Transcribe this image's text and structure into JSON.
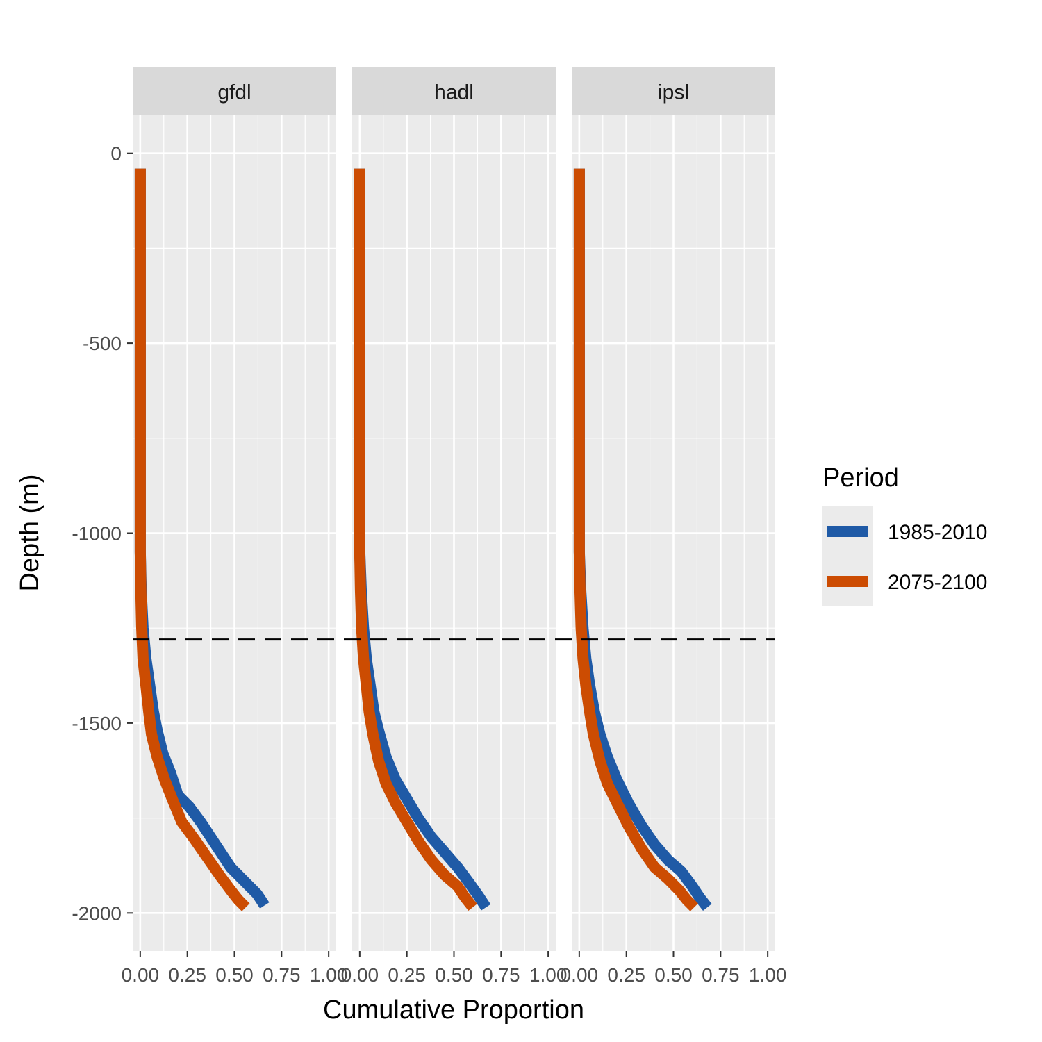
{
  "chart_data": {
    "type": "line",
    "xlabel": "Cumulative Proportion",
    "ylabel": "Depth (m)",
    "xlim": [
      -0.04,
      1.04
    ],
    "ylim": [
      -2100,
      100
    ],
    "x_ticks": [
      0.0,
      0.25,
      0.5,
      0.75,
      1.0
    ],
    "x_tick_labels": [
      "0.00",
      "0.25",
      "0.50",
      "0.75",
      "1.00"
    ],
    "y_ticks": [
      0,
      -500,
      -1000,
      -1500,
      -2000
    ],
    "y_tick_labels": [
      "0",
      "-500",
      "-1000",
      "-1500",
      "-2000"
    ],
    "grid": true,
    "reference_line": {
      "y": -1280,
      "style": "dashed",
      "color": "#000000"
    },
    "legend": {
      "title": "Period",
      "placement": "right",
      "entries": [
        {
          "label": "1985-2010",
          "color": "#1f5aa6"
        },
        {
          "label": "2075-2100",
          "color": "#cc4c02"
        }
      ]
    },
    "panels": [
      {
        "label": "gfdl",
        "series": [
          {
            "name": "1985-2010",
            "color": "#1f5aa6",
            "points": [
              [
                0.0,
                -40
              ],
              [
                0.0,
                -300
              ],
              [
                0.0,
                -600
              ],
              [
                0.0,
                -900
              ],
              [
                0.0,
                -1050
              ],
              [
                0.005,
                -1150
              ],
              [
                0.015,
                -1250
              ],
              [
                0.03,
                -1330
              ],
              [
                0.05,
                -1400
              ],
              [
                0.07,
                -1470
              ],
              [
                0.09,
                -1520
              ],
              [
                0.12,
                -1580
              ],
              [
                0.16,
                -1630
              ],
              [
                0.2,
                -1690
              ],
              [
                0.26,
                -1720
              ],
              [
                0.32,
                -1760
              ],
              [
                0.4,
                -1820
              ],
              [
                0.48,
                -1880
              ],
              [
                0.56,
                -1920
              ],
              [
                0.62,
                -1950
              ],
              [
                0.66,
                -1980
              ]
            ]
          },
          {
            "name": "2075-2100",
            "color": "#cc4c02",
            "points": [
              [
                0.0,
                -40
              ],
              [
                0.0,
                -300
              ],
              [
                0.0,
                -600
              ],
              [
                0.0,
                -900
              ],
              [
                0.0,
                -1050
              ],
              [
                0.003,
                -1150
              ],
              [
                0.008,
                -1250
              ],
              [
                0.015,
                -1330
              ],
              [
                0.03,
                -1400
              ],
              [
                0.045,
                -1470
              ],
              [
                0.06,
                -1530
              ],
              [
                0.09,
                -1590
              ],
              [
                0.13,
                -1650
              ],
              [
                0.17,
                -1700
              ],
              [
                0.22,
                -1760
              ],
              [
                0.28,
                -1800
              ],
              [
                0.35,
                -1850
              ],
              [
                0.42,
                -1900
              ],
              [
                0.48,
                -1940
              ],
              [
                0.52,
                -1965
              ],
              [
                0.56,
                -1985
              ]
            ]
          }
        ]
      },
      {
        "label": "hadl",
        "series": [
          {
            "name": "1985-2010",
            "color": "#1f5aa6",
            "points": [
              [
                0.0,
                -40
              ],
              [
                0.0,
                -300
              ],
              [
                0.0,
                -600
              ],
              [
                0.0,
                -900
              ],
              [
                0.0,
                -1050
              ],
              [
                0.008,
                -1150
              ],
              [
                0.02,
                -1250
              ],
              [
                0.035,
                -1330
              ],
              [
                0.055,
                -1400
              ],
              [
                0.075,
                -1470
              ],
              [
                0.1,
                -1520
              ],
              [
                0.14,
                -1590
              ],
              [
                0.19,
                -1650
              ],
              [
                0.25,
                -1700
              ],
              [
                0.31,
                -1750
              ],
              [
                0.38,
                -1800
              ],
              [
                0.45,
                -1840
              ],
              [
                0.52,
                -1880
              ],
              [
                0.58,
                -1920
              ],
              [
                0.63,
                -1955
              ],
              [
                0.67,
                -1985
              ]
            ]
          },
          {
            "name": "2075-2100",
            "color": "#cc4c02",
            "points": [
              [
                0.0,
                -40
              ],
              [
                0.0,
                -300
              ],
              [
                0.0,
                -600
              ],
              [
                0.0,
                -900
              ],
              [
                0.0,
                -1050
              ],
              [
                0.004,
                -1150
              ],
              [
                0.01,
                -1250
              ],
              [
                0.02,
                -1330
              ],
              [
                0.035,
                -1400
              ],
              [
                0.05,
                -1470
              ],
              [
                0.07,
                -1530
              ],
              [
                0.1,
                -1600
              ],
              [
                0.14,
                -1660
              ],
              [
                0.19,
                -1710
              ],
              [
                0.25,
                -1760
              ],
              [
                0.31,
                -1810
              ],
              [
                0.38,
                -1860
              ],
              [
                0.45,
                -1900
              ],
              [
                0.52,
                -1930
              ],
              [
                0.56,
                -1960
              ],
              [
                0.6,
                -1985
              ]
            ]
          }
        ]
      },
      {
        "label": "ipsl",
        "series": [
          {
            "name": "1985-2010",
            "color": "#1f5aa6",
            "points": [
              [
                0.0,
                -40
              ],
              [
                0.0,
                -300
              ],
              [
                0.0,
                -600
              ],
              [
                0.0,
                -900
              ],
              [
                0.0,
                -1050
              ],
              [
                0.008,
                -1150
              ],
              [
                0.02,
                -1250
              ],
              [
                0.035,
                -1330
              ],
              [
                0.055,
                -1400
              ],
              [
                0.08,
                -1470
              ],
              [
                0.11,
                -1530
              ],
              [
                0.15,
                -1590
              ],
              [
                0.2,
                -1650
              ],
              [
                0.26,
                -1710
              ],
              [
                0.33,
                -1770
              ],
              [
                0.4,
                -1820
              ],
              [
                0.47,
                -1860
              ],
              [
                0.54,
                -1890
              ],
              [
                0.6,
                -1930
              ],
              [
                0.64,
                -1960
              ],
              [
                0.68,
                -1985
              ]
            ]
          },
          {
            "name": "2075-2100",
            "color": "#cc4c02",
            "points": [
              [
                0.0,
                -40
              ],
              [
                0.0,
                -300
              ],
              [
                0.0,
                -600
              ],
              [
                0.0,
                -900
              ],
              [
                0.0,
                -1050
              ],
              [
                0.004,
                -1150
              ],
              [
                0.01,
                -1250
              ],
              [
                0.02,
                -1330
              ],
              [
                0.035,
                -1400
              ],
              [
                0.055,
                -1470
              ],
              [
                0.075,
                -1530
              ],
              [
                0.11,
                -1600
              ],
              [
                0.15,
                -1660
              ],
              [
                0.2,
                -1710
              ],
              [
                0.26,
                -1770
              ],
              [
                0.33,
                -1830
              ],
              [
                0.4,
                -1880
              ],
              [
                0.47,
                -1910
              ],
              [
                0.53,
                -1940
              ],
              [
                0.57,
                -1965
              ],
              [
                0.61,
                -1985
              ]
            ]
          }
        ]
      }
    ]
  }
}
